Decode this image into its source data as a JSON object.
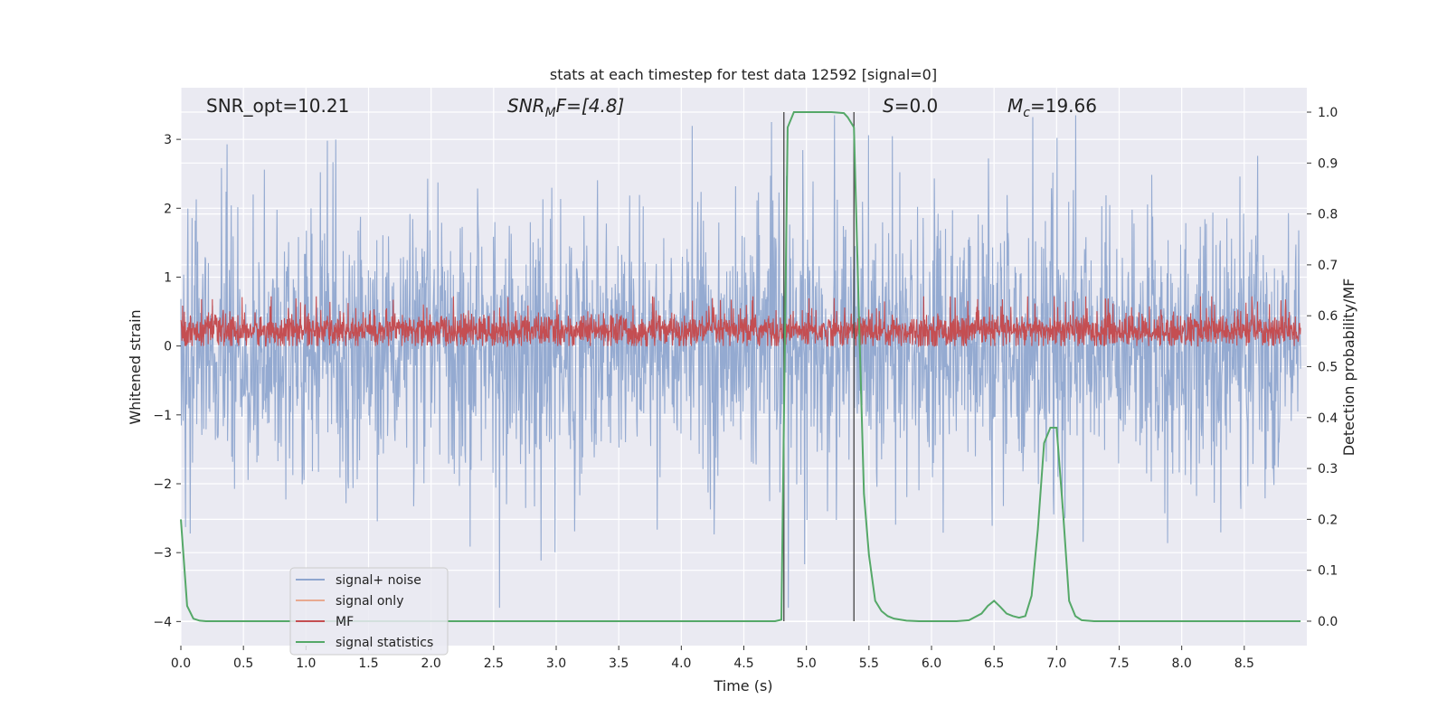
{
  "chart_data": {
    "type": "line",
    "title": "stats at each timestep for test data 12592 [signal=0]",
    "xlabel": "Time (s)",
    "ylabel_left": "Whitened strain",
    "ylabel_right": "Detection probability/MF",
    "xlim": [
      0,
      9
    ],
    "ylim_left": [
      -4.35,
      3.75
    ],
    "ylim_right": [
      -0.048,
      1.048
    ],
    "x_ticks": [
      0.0,
      0.5,
      1.0,
      1.5,
      2.0,
      2.5,
      3.0,
      3.5,
      4.0,
      4.5,
      5.0,
      5.5,
      6.0,
      6.5,
      7.0,
      7.5,
      8.0,
      8.5
    ],
    "x_tick_labels": [
      "0.0",
      "0.5",
      "1.0",
      "1.5",
      "2.0",
      "2.5",
      "3.0",
      "3.5",
      "4.0",
      "4.5",
      "5.0",
      "5.5",
      "6.0",
      "6.5",
      "7.0",
      "7.5",
      "8.0",
      "8.5"
    ],
    "y_left_ticks": [
      -4,
      -3,
      -2,
      -1,
      0,
      1,
      2,
      3
    ],
    "y_left_tick_labels": [
      "−4",
      "−3",
      "−2",
      "−1",
      "0",
      "1",
      "2",
      "3"
    ],
    "y_right_ticks": [
      0.0,
      0.1,
      0.2,
      0.3,
      0.4,
      0.5,
      0.6,
      0.7,
      0.8,
      0.9,
      1.0
    ],
    "y_right_tick_labels": [
      "0.0",
      "0.1",
      "0.2",
      "0.3",
      "0.4",
      "0.5",
      "0.6",
      "0.7",
      "0.8",
      "0.9",
      "1.0"
    ],
    "grid": true,
    "legend_placement": "lower-left",
    "annotations": {
      "snr_opt": "SNR_opt=10.21",
      "snr_mf_label": "SNR",
      "snr_mf_sub": "M",
      "snr_mf_rest": "F=[4.8]",
      "s_label": "S",
      "s_rest": "=0.0",
      "mc_label": "M",
      "mc_sub": "c",
      "mc_rest": "=19.66"
    },
    "vertical_lines_x": [
      4.82,
      5.38
    ],
    "series": [
      {
        "name": "signal+ noise",
        "color": "#8fa6cf",
        "axis": "left",
        "description": "whitened noise, approx. Gaussian, amplitude about ±3.3"
      },
      {
        "name": "signal only",
        "color": "#e8a990",
        "axis": "left",
        "values": []
      },
      {
        "name": "MF",
        "color": "#c44e52",
        "axis": "left",
        "description": "matched-filter output, approx. 0.0 to 0.7"
      },
      {
        "name": "signal statistics",
        "color": "#55a868",
        "axis": "right",
        "x": [
          0.0,
          0.05,
          0.1,
          0.15,
          0.2,
          0.3,
          0.5,
          1.0,
          2.0,
          3.0,
          4.0,
          4.5,
          4.75,
          4.8,
          4.85,
          4.9,
          4.95,
          5.0,
          5.1,
          5.2,
          5.3,
          5.33,
          5.38,
          5.42,
          5.46,
          5.5,
          5.55,
          5.6,
          5.65,
          5.7,
          5.8,
          5.9,
          6.0,
          6.2,
          6.3,
          6.4,
          6.45,
          6.5,
          6.55,
          6.6,
          6.65,
          6.7,
          6.75,
          6.8,
          6.85,
          6.9,
          6.95,
          7.0,
          7.05,
          7.1,
          7.15,
          7.2,
          7.3,
          7.5,
          8.0,
          8.5,
          8.95
        ],
        "y": [
          0.2,
          0.03,
          0.005,
          0.001,
          0.0,
          0.0,
          0.0,
          0.0,
          0.0,
          0.0,
          0.0,
          0.0,
          0.0,
          0.003,
          0.97,
          1.0,
          1.0,
          1.0,
          1.0,
          1.0,
          0.998,
          0.99,
          0.97,
          0.6,
          0.25,
          0.13,
          0.04,
          0.02,
          0.01,
          0.005,
          0.001,
          0.0,
          0.0,
          0.0,
          0.002,
          0.015,
          0.03,
          0.04,
          0.028,
          0.015,
          0.01,
          0.007,
          0.01,
          0.05,
          0.18,
          0.35,
          0.38,
          0.38,
          0.22,
          0.04,
          0.01,
          0.002,
          0.0,
          0.0,
          0.0,
          0.0,
          0.0
        ]
      }
    ]
  }
}
